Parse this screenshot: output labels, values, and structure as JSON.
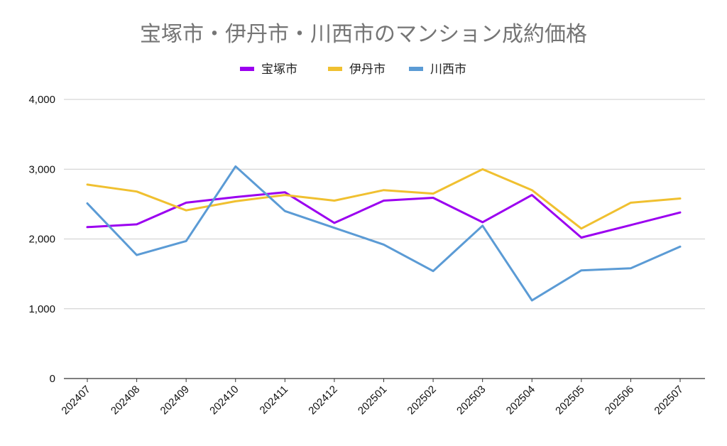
{
  "chart_data": {
    "type": "line",
    "title": "宝塚市・伊丹市・川西市のマンション成約価格",
    "xlabel": "",
    "ylabel": "",
    "categories": [
      "202407",
      "202408",
      "202409",
      "202410",
      "202411",
      "202412",
      "202501",
      "202502",
      "202503",
      "202504",
      "202505",
      "202506",
      "202507"
    ],
    "ylim": [
      0,
      4000
    ],
    "yticks": [
      0,
      1000,
      2000,
      3000,
      4000
    ],
    "ytick_labels": [
      "0",
      "1,000",
      "2,000",
      "3,000",
      "4,000"
    ],
    "grid": true,
    "legend_position": "top-center",
    "series": [
      {
        "name": "宝塚市",
        "color": "#9b00f0",
        "values": [
          2170,
          2210,
          2520,
          2600,
          2670,
          2230,
          2550,
          2590,
          2240,
          2630,
          2020,
          2200,
          2380
        ]
      },
      {
        "name": "伊丹市",
        "color": "#f0c030",
        "values": [
          2780,
          2680,
          2410,
          2540,
          2630,
          2550,
          2700,
          2650,
          3000,
          2700,
          2150,
          2520,
          2580
        ]
      },
      {
        "name": "川西市",
        "color": "#5b9bd5",
        "values": [
          2510,
          1770,
          1970,
          3040,
          2400,
          2160,
          1920,
          1540,
          2190,
          1120,
          1550,
          1580,
          1890
        ]
      }
    ]
  }
}
